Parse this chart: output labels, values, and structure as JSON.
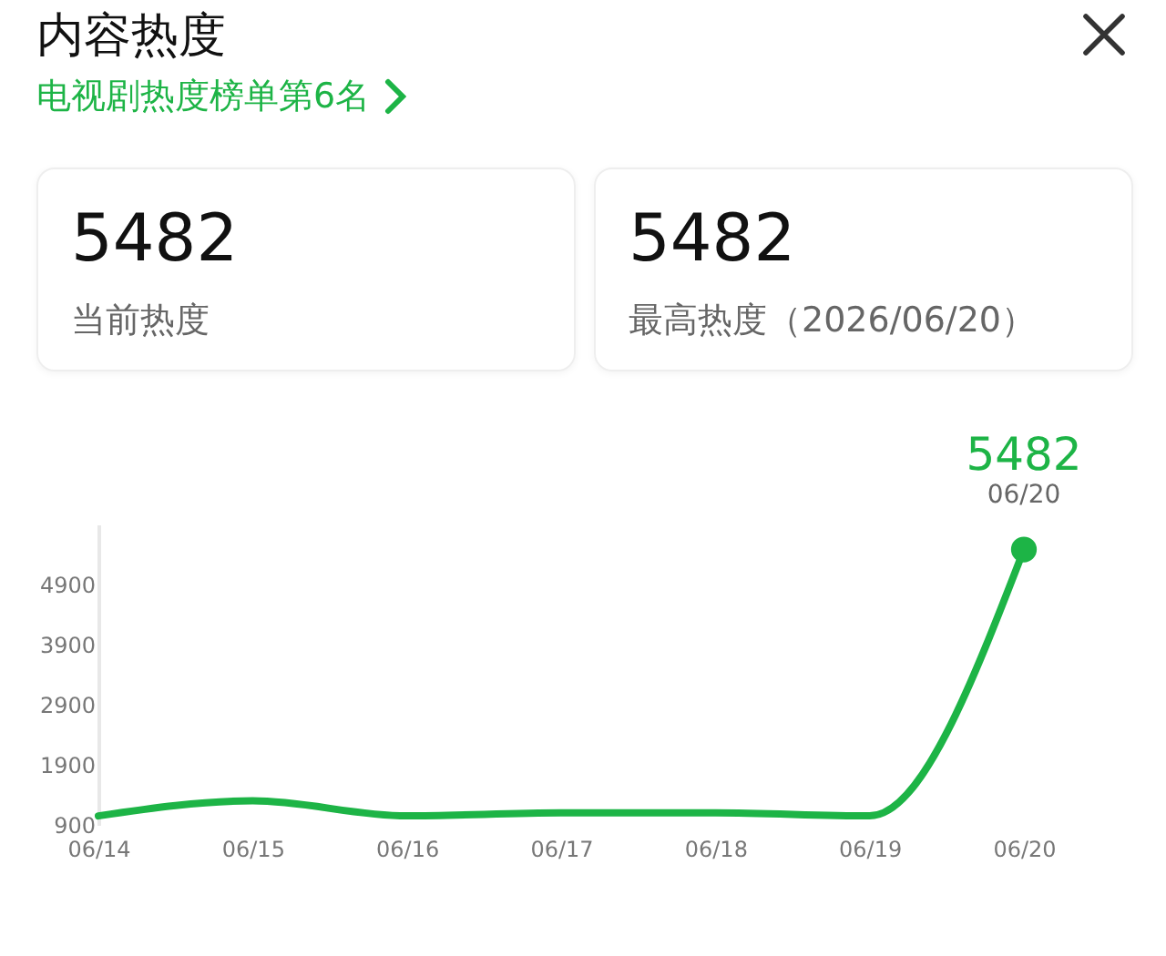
{
  "chart_data": {
    "type": "line",
    "title": "内容热度",
    "subtitle": "电视剧热度榜单第6名",
    "annotations": [
      "5482",
      "当前热度",
      "5482",
      "最高热度（2026/06/20）",
      {
        "text": "06/20",
        "x": "06/20",
        "y": 5482
      }
    ],
    "categories": [
      "06/14",
      "06/15",
      "06/16",
      "06/17",
      "06/18",
      "06/19",
      "06/20"
    ],
    "series": [
      {
        "type": "line",
        "color": "#1db446",
        "values": [
          1050,
          1300,
          1050,
          1100,
          1100,
          1050,
          5482
        ]
      },
      {
        "type": "scatter",
        "color": "#1db446",
        "x": [
          "06/20"
        ],
        "values": [
          5482
        ],
        "value_labels": [
          "5482"
        ]
      }
    ],
    "ylim": [
      900,
      5900
    ],
    "yticks": [
      900,
      1900,
      2900,
      3900,
      4900
    ],
    "grid": false
  }
}
